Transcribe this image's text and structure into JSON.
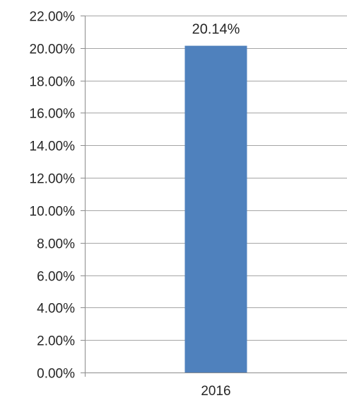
{
  "chart_data": {
    "type": "bar",
    "categories": [
      "2016"
    ],
    "values": [
      20.14
    ],
    "data_labels": [
      "20.14%"
    ],
    "ylim": [
      0,
      22
    ],
    "yticks": [
      0,
      2,
      4,
      6,
      8,
      10,
      12,
      14,
      16,
      18,
      20,
      22
    ],
    "ytick_labels": [
      "0.00%",
      "2.00%",
      "4.00%",
      "6.00%",
      "8.00%",
      "10.00%",
      "12.00%",
      "14.00%",
      "16.00%",
      "18.00%",
      "20.00%",
      "22.00%"
    ],
    "grid": true,
    "legend": "none",
    "colors": {
      "bar": "#4f81bd",
      "grid": "#a6a6a6",
      "axis": "#8c8c8c",
      "text": "#262626"
    }
  }
}
